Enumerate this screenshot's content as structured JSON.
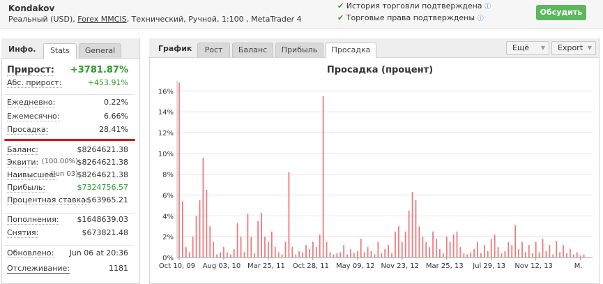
{
  "header": {
    "name": "Kondakov",
    "details": [
      "Реальный (USD), ",
      "Forex MMCIS",
      ", Технический, Ручной, 1:100 , MetaTrader 4"
    ],
    "verifications": [
      "История торговли подтверждена",
      "Торговые права подтверждены"
    ],
    "button": "Обсудить"
  },
  "left": {
    "title": "Инфо.",
    "tabs": [
      "Stats",
      "General"
    ],
    "rows": [
      {
        "label": "Прирост:",
        "value": "+3781.87%",
        "color": "#2e9a2e"
      },
      {
        "label": "Абс. прирост:",
        "value": "+453.91%",
        "color": "#2e9a2e"
      },
      {
        "label": "Ежедневно:",
        "value": "0.22%"
      },
      {
        "label": "Ежемесячно:",
        "value": "6.66%"
      },
      {
        "label": "Просадка:",
        "value": "28.41%"
      },
      {
        "label": "Баланс:",
        "value": "$8264621.38"
      },
      {
        "label": "Эквити:",
        "note": "(100.00%)",
        "value": "$8264621.38"
      },
      {
        "label": "Наивысшее:",
        "note": "(Jun 03)",
        "value": "$8264621.38"
      },
      {
        "label": "Прибыль:",
        "value": "$7324756.57",
        "color": "#2e9a2e"
      },
      {
        "label": "Процентная ставка:",
        "value": "-$63965.21"
      },
      {
        "label": "Пополнения:",
        "value": "$1648639.03"
      },
      {
        "label": "Снятия:",
        "value": "$673821.48"
      },
      {
        "label": "Обновлено:",
        "value": "Jun 06 at 20:36"
      },
      {
        "label": "Отслеживание:",
        "value": "1181"
      }
    ]
  },
  "right": {
    "title": "График",
    "tabs": [
      "Рост",
      "Баланс",
      "Прибыль",
      "Просадка"
    ],
    "menus": [
      "Ещё",
      "Export"
    ]
  },
  "chart_data": {
    "type": "bar",
    "title": "Просадка (процент)",
    "color": "#ee7b7f",
    "grid": true,
    "categories": [
      "Oct 10, 09",
      null,
      null,
      null,
      null,
      null,
      null,
      null,
      null,
      null,
      null,
      null,
      null,
      "Aug 03, 10",
      null,
      null,
      null,
      null,
      null,
      null,
      null,
      null,
      null,
      null,
      null,
      null,
      "Mar 25, 11",
      null,
      null,
      null,
      null,
      null,
      null,
      null,
      null,
      null,
      null,
      null,
      null,
      "Oct 28, 11",
      null,
      null,
      null,
      null,
      null,
      null,
      null,
      null,
      null,
      null,
      null,
      null,
      "May 09, 12",
      null,
      null,
      null,
      null,
      null,
      null,
      null,
      null,
      null,
      null,
      null,
      null,
      "Nov 23, 12",
      null,
      null,
      null,
      null,
      null,
      null,
      null,
      null,
      null,
      null,
      null,
      null,
      "Mar 25, 13",
      null,
      null,
      null,
      null,
      null,
      null,
      null,
      null,
      null,
      null,
      null,
      null,
      "Jul 29, 13",
      null,
      null,
      null,
      null,
      null,
      null,
      null,
      null,
      null,
      null,
      null,
      null,
      "Nov 12, 13",
      null,
      null,
      null,
      null,
      null,
      null,
      null,
      null,
      null,
      null,
      null,
      null,
      "M.",
      null
    ],
    "values": [
      16.8,
      5.4,
      1,
      0.5,
      2,
      4,
      5.5,
      9.6,
      6.5,
      3,
      1.5,
      0.3,
      0.5,
      1,
      0.5,
      0.3,
      0.8,
      3.3,
      2,
      0.5,
      4.2,
      2,
      0.4,
      3.5,
      4.3,
      2,
      1.5,
      2.5,
      1,
      0.5,
      0.3,
      1.5,
      8.2,
      1,
      0.3,
      0.6,
      0.5,
      1.2,
      0.8,
      1.5,
      1,
      2.2,
      15.5,
      1.5,
      0.5,
      0.3,
      0.4,
      0.5,
      1.2,
      0.3,
      0.8,
      0.4,
      0.6,
      1.8,
      0.5,
      1,
      0.6,
      0.3,
      1.5,
      0.4,
      0.8,
      1.2,
      0.4,
      2.5,
      3,
      1.5,
      2.5,
      4.5,
      6.3,
      5.5,
      3,
      2,
      1.5,
      1,
      2.5,
      1.8,
      0.8,
      0.4,
      2,
      1.5,
      2.2,
      2.5,
      1,
      0.4,
      0.3,
      0.5,
      0.8,
      1.5,
      0.4,
      1.2,
      0.6,
      1.8,
      2.2,
      1,
      0.4,
      0.6,
      1.5,
      1.2,
      3.1,
      0.8,
      1.5,
      0.5,
      1.2,
      0.4,
      1.5,
      0.5,
      1.8,
      0.6,
      1.2,
      0.3,
      1.6,
      0.5,
      1.2,
      0.4,
      0.8,
      0.3,
      0.5,
      0.2,
      0.3
    ],
    "ylim": [
      0,
      17
    ],
    "yticks": [
      {
        "value": 0,
        "label": "0%"
      },
      {
        "value": 2,
        "label": "2%"
      },
      {
        "value": 4,
        "label": "4%"
      },
      {
        "value": 6,
        "label": "6%"
      },
      {
        "value": 8,
        "label": "8%"
      },
      {
        "value": 10,
        "label": "10%"
      },
      {
        "value": 12,
        "label": "12%"
      },
      {
        "value": 14,
        "label": "14%"
      },
      {
        "value": 16,
        "label": "16%"
      }
    ]
  }
}
